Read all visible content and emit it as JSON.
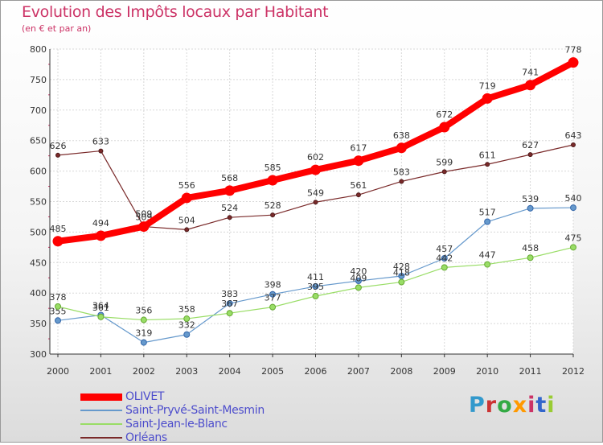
{
  "chart_data": {
    "type": "line",
    "title": "Evolution des Impôts locaux par Habitant",
    "subtitle": "(en € et par an)",
    "xlabel": "",
    "ylabel": "",
    "x": [
      "2000",
      "2001",
      "2002",
      "2003",
      "2004",
      "2005",
      "2006",
      "2007",
      "2008",
      "2009",
      "2010",
      "2011",
      "2012"
    ],
    "ylim": [
      300,
      800
    ],
    "yticks": [
      300,
      350,
      400,
      450,
      500,
      550,
      600,
      650,
      700,
      750,
      800
    ],
    "grid": true,
    "legend_position": "bottom-left",
    "series": [
      {
        "name": "OLIVET",
        "color": "#ff0000",
        "values": [
          485,
          494,
          509,
          556,
          568,
          585,
          602,
          617,
          638,
          672,
          719,
          741,
          778
        ]
      },
      {
        "name": "Saint-Pryvé-Saint-Mesmin",
        "color": "#6699cc",
        "values": [
          355,
          364,
          319,
          332,
          383,
          398,
          411,
          420,
          428,
          457,
          517,
          539,
          540
        ]
      },
      {
        "name": "Saint-Jean-le-Blanc",
        "color": "#99dd66",
        "values": [
          378,
          361,
          356,
          358,
          367,
          377,
          395,
          409,
          418,
          442,
          447,
          458,
          475
        ]
      },
      {
        "name": "Orléans",
        "color": "#7a2a2a",
        "values": [
          626,
          633,
          509,
          504,
          524,
          528,
          549,
          561,
          583,
          599,
          611,
          627,
          643
        ]
      }
    ]
  },
  "logo": {
    "text": "Proxiti",
    "colors": [
      "#3399cc",
      "#cc3333",
      "#33aa44",
      "#ff9900",
      "#cc3366",
      "#3366cc",
      "#99cc33"
    ]
  }
}
